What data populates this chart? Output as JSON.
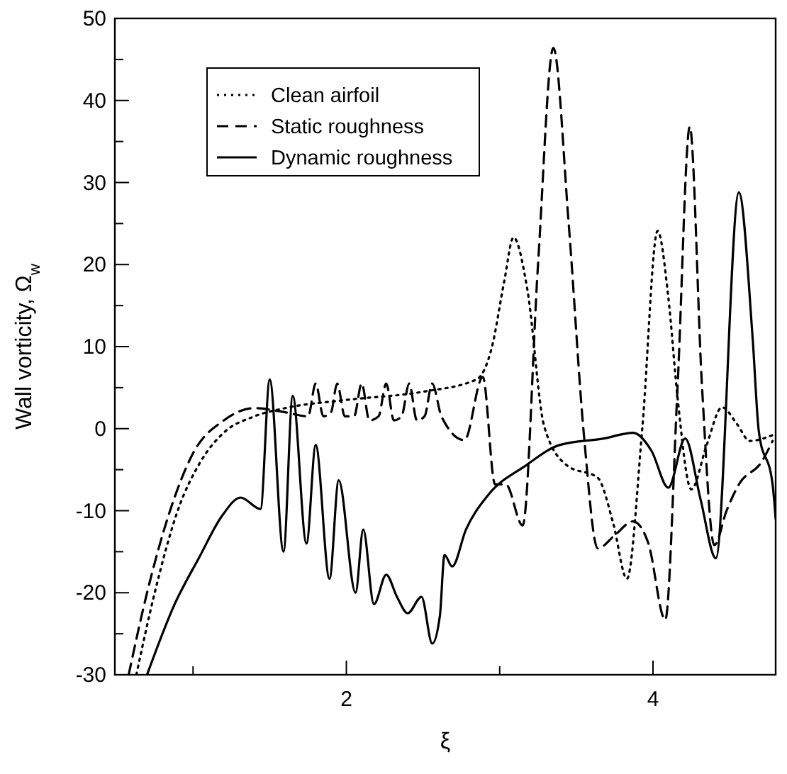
{
  "chart_data": {
    "type": "line",
    "xlabel": "ξ",
    "ylabel": "Wall vorticity, Ω$_{w}$",
    "xlim": [
      0.49,
      4.8
    ],
    "ylim": [
      -30,
      50
    ],
    "xticks": [
      {
        "value": 1,
        "label": null
      },
      2,
      {
        "value": 3,
        "label": null
      },
      4
    ],
    "yticks": [
      -30,
      {
        "value": -25,
        "label": null
      },
      -20,
      {
        "value": -15,
        "label": null
      },
      -10,
      {
        "value": -5,
        "label": null
      },
      0,
      {
        "value": 5,
        "label": null
      },
      10,
      {
        "value": 15,
        "label": null
      },
      20,
      {
        "value": 25,
        "label": null
      },
      30,
      {
        "value": 35,
        "label": null
      },
      40,
      {
        "value": 45,
        "label": null
      },
      50
    ],
    "legend": "top left",
    "series": [
      {
        "name": "Clean airfoil",
        "color": "#000000",
        "line_style": "dotted",
        "x": [
          0.63,
          0.75,
          0.9,
          1.05,
          1.2,
          1.4,
          1.6,
          2.0,
          2.5,
          2.85,
          2.95,
          3.03,
          3.09,
          3.18,
          3.29,
          3.44,
          3.64,
          3.74,
          3.83,
          3.93,
          4.03,
          4.1,
          4.16,
          4.25,
          4.35,
          4.45,
          4.55,
          4.63,
          4.78
        ],
        "values": [
          -30,
          -20,
          -10,
          -4,
          -0.5,
          1.5,
          2.5,
          3.5,
          4.5,
          6,
          10,
          18,
          23.3,
          17,
          0.3,
          -4.5,
          -6,
          -11.5,
          -18.3,
          0,
          24.1,
          16,
          3.8,
          -7.4,
          -2,
          2.6,
          0.5,
          -1.5,
          -0.8
        ]
      },
      {
        "name": "Static roughness",
        "color": "#000000",
        "line_style": "dashed",
        "x": [
          0.58,
          0.7,
          0.85,
          1.0,
          1.2,
          1.4,
          1.6,
          1.75,
          1.8,
          1.85,
          1.9,
          1.94,
          1.99,
          2.05,
          2.1,
          2.15,
          2.21,
          2.26,
          2.31,
          2.36,
          2.41,
          2.46,
          2.51,
          2.56,
          2.62,
          2.77,
          2.89,
          2.97,
          3.04,
          3.15,
          3.25,
          3.35,
          3.45,
          3.55,
          3.64,
          3.75,
          3.87,
          3.97,
          4.08,
          4.16,
          4.24,
          4.32,
          4.4,
          4.48,
          4.56,
          4.71,
          4.78
        ],
        "values": [
          -30,
          -20,
          -10,
          -3,
          1,
          2.5,
          2,
          1.5,
          5.5,
          1.5,
          2,
          5.5,
          1.5,
          1.5,
          5.5,
          1,
          1.5,
          5.5,
          1,
          1.5,
          5.5,
          1,
          1.5,
          5.5,
          1.5,
          -1.4,
          6.3,
          -6.8,
          -6.8,
          -11.8,
          20,
          46.4,
          25,
          -0.9,
          -14.6,
          -13,
          -11.3,
          -14,
          -23.3,
          5,
          36.8,
          5,
          -14.2,
          -10,
          -6.8,
          -4,
          -1.5
        ]
      },
      {
        "name": "Dynamic roughness",
        "color": "#000000",
        "line_style": "solid",
        "x": [
          0.7,
          0.88,
          1.04,
          1.19,
          1.31,
          1.44,
          1.5,
          1.59,
          1.65,
          1.74,
          1.8,
          1.89,
          1.95,
          2.06,
          2.11,
          2.18,
          2.26,
          2.33,
          2.4,
          2.49,
          2.56,
          2.61,
          2.64,
          2.69,
          2.78,
          2.92,
          3.17,
          3.39,
          3.68,
          3.87,
          3.99,
          4.1,
          4.21,
          4.31,
          4.41,
          4.56,
          4.65,
          4.69,
          4.78,
          4.8
        ],
        "values": [
          -30,
          -21.4,
          -15.7,
          -10.6,
          -8.4,
          -9.8,
          6,
          -15,
          4,
          -14,
          -2,
          -18.3,
          -6.3,
          -20,
          -12.3,
          -21.4,
          -17.8,
          -20.5,
          -22.5,
          -20.5,
          -26.2,
          -22.8,
          -15.4,
          -16.8,
          -12.3,
          -8.2,
          -4.5,
          -2,
          -1.2,
          -0.5,
          -2.7,
          -7.2,
          -1.2,
          -8.6,
          -15.8,
          28.8,
          11,
          -0.3,
          -6.8,
          -11
        ]
      }
    ]
  }
}
